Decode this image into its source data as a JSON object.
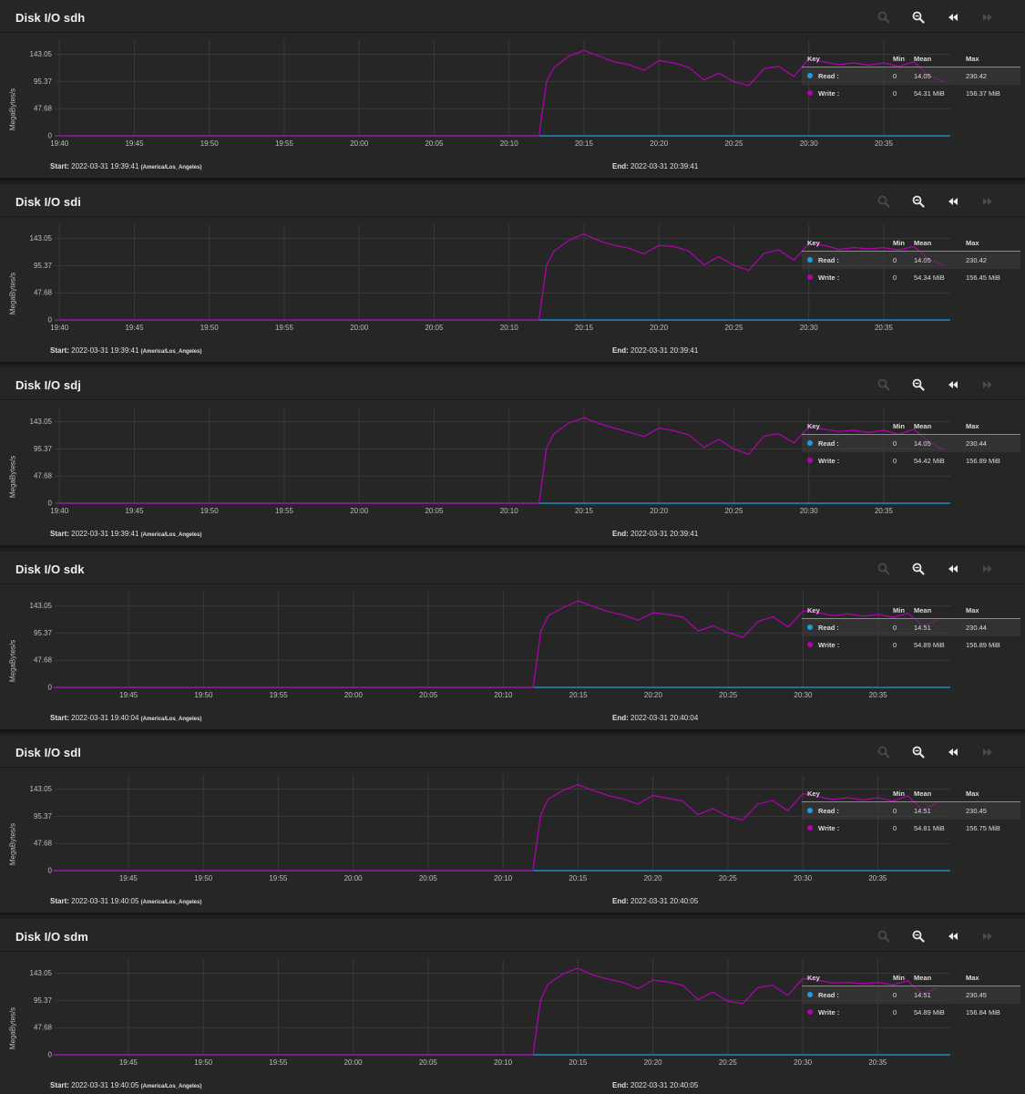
{
  "colors": {
    "background": "#262626",
    "grid": "#3c3c3c",
    "read": "#1f9cdc",
    "write": "#b400b4",
    "text": "#e6e6e6"
  },
  "icons": {
    "zoom_in": "zoom-in-icon",
    "zoom_out": "zoom-out-icon",
    "back": "rewind-icon",
    "forward": "fast-forward-icon"
  },
  "panels": [
    {
      "title": "Disk I/O sdh",
      "ylabel": "MegaBytes/s",
      "start_label": "Start:",
      "start": "2022-03-31 19:39:41",
      "tz": "(America/Los_Angeles)",
      "end_label": "End:",
      "end": "2022-03-31 20:39:41",
      "legend": {
        "headers": {
          "key": "Key",
          "min": "Min",
          "mean": "Mean",
          "max": "Max"
        },
        "read": {
          "name": "Read :",
          "min": "0",
          "mean": "14.05",
          "max": "230.42"
        },
        "write": {
          "name": "Write :",
          "min": "0",
          "mean": "54.31 MiB",
          "max": "156.37 MiB"
        }
      }
    },
    {
      "title": "Disk I/O sdi",
      "ylabel": "MegaBytes/s",
      "start_label": "Start:",
      "start": "2022-03-31 19:39:41",
      "tz": "(America/Los_Angeles)",
      "end_label": "End:",
      "end": "2022-03-31 20:39:41",
      "legend": {
        "headers": {
          "key": "Key",
          "min": "Min",
          "mean": "Mean",
          "max": "Max"
        },
        "read": {
          "name": "Read :",
          "min": "0",
          "mean": "14.05",
          "max": "230.42"
        },
        "write": {
          "name": "Write :",
          "min": "0",
          "mean": "54.34 MiB",
          "max": "156.45 MiB"
        }
      }
    },
    {
      "title": "Disk I/O sdj",
      "ylabel": "MegaBytes/s",
      "start_label": "Start:",
      "start": "2022-03-31 19:39:41",
      "tz": "(America/Los_Angeles)",
      "end_label": "End:",
      "end": "2022-03-31 20:39:41",
      "legend": {
        "headers": {
          "key": "Key",
          "min": "Min",
          "mean": "Mean",
          "max": "Max"
        },
        "read": {
          "name": "Read :",
          "min": "0",
          "mean": "14.05",
          "max": "230.44"
        },
        "write": {
          "name": "Write :",
          "min": "0",
          "mean": "54.42 MiB",
          "max": "156.89 MiB"
        }
      }
    },
    {
      "title": "Disk I/O sdk",
      "ylabel": "MegaBytes/s",
      "start_label": "Start:",
      "start": "2022-03-31 19:40:04",
      "tz": "(America/Los_Angeles)",
      "end_label": "End:",
      "end": "2022-03-31 20:40:04",
      "legend": {
        "headers": {
          "key": "Key",
          "min": "Min",
          "mean": "Mean",
          "max": "Max"
        },
        "read": {
          "name": "Read :",
          "min": "0",
          "mean": "14.51",
          "max": "230.44"
        },
        "write": {
          "name": "Write :",
          "min": "0",
          "mean": "54.89 MiB",
          "max": "156.89 MiB"
        }
      }
    },
    {
      "title": "Disk I/O sdl",
      "ylabel": "MegaBytes/s",
      "start_label": "Start:",
      "start": "2022-03-31 19:40:05",
      "tz": "(America/Los_Angeles)",
      "end_label": "End:",
      "end": "2022-03-31 20:40:05",
      "legend": {
        "headers": {
          "key": "Key",
          "min": "Min",
          "mean": "Mean",
          "max": "Max"
        },
        "read": {
          "name": "Read :",
          "min": "0",
          "mean": "14.51",
          "max": "230.45"
        },
        "write": {
          "name": "Write :",
          "min": "0",
          "mean": "54.81 MiB",
          "max": "156.75 MiB"
        }
      }
    },
    {
      "title": "Disk I/O sdm",
      "ylabel": "MegaBytes/s",
      "start_label": "Start:",
      "start": "2022-03-31 19:40:05",
      "tz": "(America/Los_Angeles)",
      "end_label": "End:",
      "end": "2022-03-31 20:40:05",
      "legend": {
        "headers": {
          "key": "Key",
          "min": "Min",
          "mean": "Mean",
          "max": "Max"
        },
        "read": {
          "name": "Read :",
          "min": "0",
          "mean": "14.51",
          "max": "230.45"
        },
        "write": {
          "name": "Write :",
          "min": "0",
          "mean": "54.89 MiB",
          "max": "156.84 MiB"
        }
      }
    }
  ],
  "chart_data": [
    {
      "type": "line",
      "ylabel": "MegaBytes/s",
      "ylim": [
        0,
        160
      ],
      "yticks": [
        0,
        47.68,
        95.37,
        143.05
      ],
      "yticklabels": [
        "0",
        "47.68",
        "95.37",
        "143.05"
      ],
      "xlim": [
        "19:39:41",
        "20:39:41"
      ],
      "xticks": [
        "19:40",
        "19:45",
        "19:50",
        "19:55",
        "20:00",
        "20:05",
        "20:10",
        "20:15",
        "20:20",
        "20:25",
        "20:30",
        "20:35"
      ],
      "legend": "top-right",
      "x": [
        "19:40",
        "20:12",
        "20:12.5",
        "20:13",
        "20:14",
        "20:15",
        "20:16",
        "20:17",
        "20:18",
        "20:19",
        "20:20",
        "20:21",
        "20:22",
        "20:23",
        "20:24",
        "20:25",
        "20:26",
        "20:27",
        "20:28",
        "20:29",
        "20:30",
        "20:31",
        "20:32",
        "20:33",
        "20:34",
        "20:35",
        "20:36",
        "20:37",
        "20:38",
        "20:39"
      ],
      "series": [
        {
          "name": "Read",
          "values": [
            0,
            0,
            0,
            0,
            0,
            0,
            0,
            0,
            0,
            0,
            0,
            0,
            0,
            0,
            0,
            0,
            0,
            0,
            0,
            0,
            0,
            0,
            0,
            0,
            0,
            0,
            0,
            0,
            0,
            0
          ]
        },
        {
          "name": "Write",
          "values": [
            0,
            0,
            95,
            120,
            140,
            150,
            140,
            130,
            125,
            115,
            132,
            128,
            120,
            98,
            110,
            95,
            88,
            118,
            122,
            104,
            135,
            130,
            125,
            128,
            124,
            128,
            122,
            130,
            106,
            95
          ]
        }
      ]
    },
    {
      "type": "line",
      "ylabel": "MegaBytes/s",
      "ylim": [
        0,
        160
      ],
      "yticks": [
        0,
        47.68,
        95.37,
        143.05
      ],
      "yticklabels": [
        "0",
        "47.68",
        "95.37",
        "143.05"
      ],
      "xlim": [
        "19:39:41",
        "20:39:41"
      ],
      "xticks": [
        "19:40",
        "19:45",
        "19:50",
        "19:55",
        "20:00",
        "20:05",
        "20:10",
        "20:15",
        "20:20",
        "20:25",
        "20:30",
        "20:35"
      ],
      "legend": "top-right",
      "x": [
        "19:40",
        "20:12",
        "20:12.5",
        "20:13",
        "20:14",
        "20:15",
        "20:16",
        "20:17",
        "20:18",
        "20:19",
        "20:20",
        "20:21",
        "20:22",
        "20:23",
        "20:24",
        "20:25",
        "20:26",
        "20:27",
        "20:28",
        "20:29",
        "20:30",
        "20:31",
        "20:32",
        "20:33",
        "20:34",
        "20:35",
        "20:36",
        "20:37",
        "20:38",
        "20:39"
      ],
      "series": [
        {
          "name": "Read",
          "values": [
            0,
            0,
            0,
            0,
            0,
            0,
            0,
            0,
            0,
            0,
            0,
            0,
            0,
            0,
            0,
            0,
            0,
            0,
            0,
            0,
            0,
            0,
            0,
            0,
            0,
            0,
            0,
            0,
            0,
            0
          ]
        },
        {
          "name": "Write",
          "values": [
            0,
            0,
            96,
            121,
            140,
            151,
            139,
            131,
            126,
            116,
            131,
            129,
            121,
            97,
            111,
            96,
            87,
            117,
            123,
            105,
            134,
            131,
            124,
            127,
            125,
            127,
            123,
            129,
            107,
            96
          ]
        }
      ]
    },
    {
      "type": "line",
      "ylabel": "MegaBytes/s",
      "ylim": [
        0,
        160
      ],
      "yticks": [
        0,
        47.68,
        95.37,
        143.05
      ],
      "yticklabels": [
        "0",
        "47.68",
        "95.37",
        "143.05"
      ],
      "xlim": [
        "19:39:41",
        "20:39:41"
      ],
      "xticks": [
        "19:40",
        "19:45",
        "19:50",
        "19:55",
        "20:00",
        "20:05",
        "20:10",
        "20:15",
        "20:20",
        "20:25",
        "20:30",
        "20:35"
      ],
      "legend": "top-right",
      "x": [
        "19:40",
        "20:12",
        "20:12.5",
        "20:13",
        "20:14",
        "20:15",
        "20:16",
        "20:17",
        "20:18",
        "20:19",
        "20:20",
        "20:21",
        "20:22",
        "20:23",
        "20:24",
        "20:25",
        "20:26",
        "20:27",
        "20:28",
        "20:29",
        "20:30",
        "20:31",
        "20:32",
        "20:33",
        "20:34",
        "20:35",
        "20:36",
        "20:37",
        "20:38",
        "20:39"
      ],
      "series": [
        {
          "name": "Read",
          "values": [
            0,
            0,
            0,
            0,
            0,
            0,
            0,
            0,
            0,
            0,
            0,
            0,
            0,
            0,
            0,
            0,
            0,
            0,
            0,
            0,
            0,
            0,
            0,
            0,
            0,
            0,
            0,
            0,
            0,
            0
          ]
        },
        {
          "name": "Write",
          "values": [
            0,
            0,
            97,
            122,
            141,
            150,
            140,
            132,
            125,
            117,
            132,
            127,
            120,
            98,
            112,
            95,
            86,
            118,
            122,
            106,
            134,
            130,
            126,
            128,
            124,
            128,
            121,
            130,
            108,
            94
          ]
        }
      ]
    },
    {
      "type": "line",
      "ylabel": "MegaBytes/s",
      "ylim": [
        0,
        160
      ],
      "yticks": [
        0,
        47.68,
        95.37,
        143.05
      ],
      "yticklabels": [
        "0",
        "47.68",
        "95.37",
        "143.05"
      ],
      "xlim": [
        "19:40:04",
        "20:40:04"
      ],
      "xticks": [
        "19:45",
        "19:50",
        "19:55",
        "20:00",
        "20:05",
        "20:10",
        "20:15",
        "20:20",
        "20:25",
        "20:30",
        "20:35"
      ],
      "legend": "top-right",
      "x": [
        "19:40",
        "20:12",
        "20:12.5",
        "20:13",
        "20:14",
        "20:15",
        "20:16",
        "20:17",
        "20:18",
        "20:19",
        "20:20",
        "20:21",
        "20:22",
        "20:23",
        "20:24",
        "20:25",
        "20:26",
        "20:27",
        "20:28",
        "20:29",
        "20:30",
        "20:31",
        "20:32",
        "20:33",
        "20:34",
        "20:35",
        "20:36",
        "20:37",
        "20:38",
        "20:39"
      ],
      "series": [
        {
          "name": "Read",
          "values": [
            0,
            0,
            0,
            0,
            0,
            0,
            0,
            0,
            0,
            0,
            0,
            0,
            0,
            0,
            0,
            0,
            0,
            0,
            0,
            0,
            0,
            0,
            0,
            0,
            0,
            0,
            0,
            0,
            0,
            0
          ]
        },
        {
          "name": "Write",
          "values": [
            0,
            0,
            98,
            126,
            140,
            152,
            142,
            133,
            127,
            118,
            131,
            128,
            123,
            99,
            108,
            96,
            88,
            116,
            124,
            106,
            134,
            131,
            126,
            129,
            125,
            128,
            123,
            130,
            108,
            118
          ]
        }
      ]
    },
    {
      "type": "line",
      "ylabel": "MegaBytes/s",
      "ylim": [
        0,
        160
      ],
      "yticks": [
        0,
        47.68,
        95.37,
        143.05
      ],
      "yticklabels": [
        "0",
        "47.68",
        "95.37",
        "143.05"
      ],
      "xlim": [
        "19:40:05",
        "20:40:05"
      ],
      "xticks": [
        "19:45",
        "19:50",
        "19:55",
        "20:00",
        "20:05",
        "20:10",
        "20:15",
        "20:20",
        "20:25",
        "20:30",
        "20:35"
      ],
      "legend": "top-right",
      "x": [
        "19:40",
        "20:12",
        "20:12.5",
        "20:13",
        "20:14",
        "20:15",
        "20:16",
        "20:17",
        "20:18",
        "20:19",
        "20:20",
        "20:21",
        "20:22",
        "20:23",
        "20:24",
        "20:25",
        "20:26",
        "20:27",
        "20:28",
        "20:29",
        "20:30",
        "20:31",
        "20:32",
        "20:33",
        "20:34",
        "20:35",
        "20:36",
        "20:37",
        "20:38",
        "20:39"
      ],
      "series": [
        {
          "name": "Read",
          "values": [
            0,
            0,
            0,
            0,
            0,
            0,
            0,
            0,
            0,
            0,
            0,
            0,
            0,
            0,
            0,
            0,
            0,
            0,
            0,
            0,
            0,
            0,
            0,
            0,
            0,
            0,
            0,
            0,
            0,
            0
          ]
        },
        {
          "name": "Write",
          "values": [
            0,
            0,
            97,
            125,
            141,
            151,
            141,
            132,
            126,
            117,
            132,
            127,
            122,
            98,
            109,
            95,
            89,
            117,
            123,
            105,
            135,
            130,
            125,
            128,
            124,
            128,
            122,
            131,
            107,
            119
          ]
        }
      ]
    },
    {
      "type": "line",
      "ylabel": "MegaBytes/s",
      "ylim": [
        0,
        160
      ],
      "yticks": [
        0,
        47.68,
        95.37,
        143.05
      ],
      "yticklabels": [
        "0",
        "47.68",
        "95.37",
        "143.05"
      ],
      "xlim": [
        "19:40:05",
        "20:40:05"
      ],
      "xticks": [
        "19:45",
        "19:50",
        "19:55",
        "20:00",
        "20:05",
        "20:10",
        "20:15",
        "20:20",
        "20:25",
        "20:30",
        "20:35"
      ],
      "legend": "top-right",
      "x": [
        "19:40",
        "20:12",
        "20:12.5",
        "20:13",
        "20:14",
        "20:15",
        "20:16",
        "20:17",
        "20:18",
        "20:19",
        "20:20",
        "20:21",
        "20:22",
        "20:23",
        "20:24",
        "20:25",
        "20:26",
        "20:27",
        "20:28",
        "20:29",
        "20:30",
        "20:31",
        "20:32",
        "20:33",
        "20:34",
        "20:35",
        "20:36",
        "20:37",
        "20:38",
        "20:39"
      ],
      "series": [
        {
          "name": "Read",
          "values": [
            0,
            0,
            0,
            0,
            0,
            0,
            0,
            0,
            0,
            0,
            0,
            0,
            0,
            0,
            0,
            0,
            0,
            0,
            0,
            0,
            0,
            0,
            0,
            0,
            0,
            0,
            0,
            0,
            0,
            0
          ]
        },
        {
          "name": "Write",
          "values": [
            0,
            0,
            96,
            124,
            142,
            152,
            140,
            133,
            127,
            116,
            131,
            128,
            122,
            97,
            110,
            94,
            90,
            118,
            122,
            104,
            134,
            131,
            126,
            127,
            125,
            127,
            123,
            130,
            106,
            118
          ]
        }
      ]
    }
  ]
}
